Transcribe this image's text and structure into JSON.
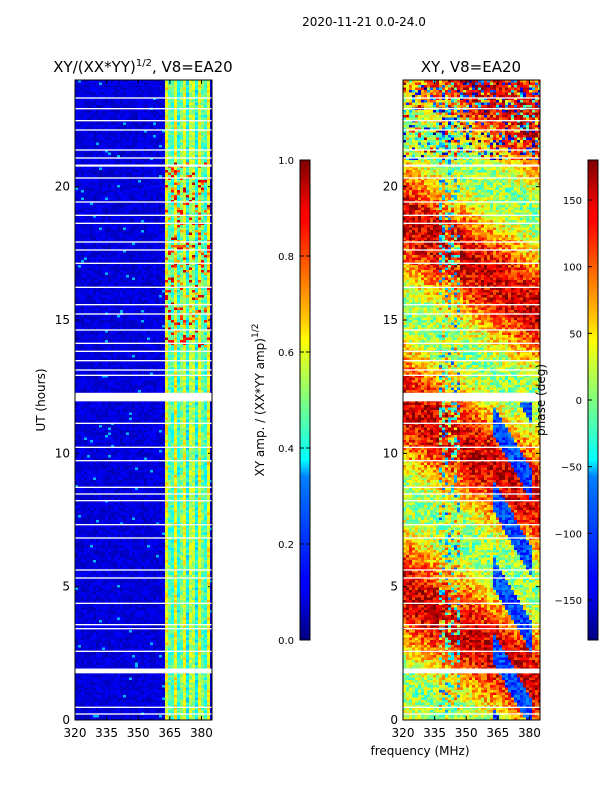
{
  "figure_title": "2020-11-21 0.0-24.0",
  "chart_data": [
    {
      "type": "heatmap",
      "title": "XY/(XX*YY)^1/2, V8=EA20",
      "title_main": "XY/(XX*YY)",
      "title_exp": "1/2",
      "title_tail": ", V8=EA20",
      "xlabel": "",
      "ylabel": "UT (hours)",
      "xlim": [
        320,
        385
      ],
      "ylim": [
        0,
        24
      ],
      "x_ticks": [
        320,
        335,
        350,
        365,
        380
      ],
      "y_ticks": [
        0,
        5,
        10,
        15,
        20
      ],
      "colorbar": {
        "label": "XY amp. / (XX*YY amp)^1/2",
        "label_main": "XY amp. / (XX*YY amp)",
        "label_exp": "1/2",
        "range": [
          0.0,
          1.0
        ],
        "ticks": [
          "0.0",
          "0.2",
          "0.4",
          "0.6",
          "0.8",
          "1.0"
        ],
        "colormap": "jet"
      }
    },
    {
      "type": "heatmap",
      "title": "XY, V8=EA20",
      "xlabel": "frequency (MHz)",
      "ylabel": "",
      "xlim": [
        320,
        385
      ],
      "ylim": [
        0,
        24
      ],
      "x_ticks": [
        320,
        335,
        350,
        365,
        380
      ],
      "y_ticks": [
        0,
        5,
        10,
        15,
        20
      ],
      "colorbar": {
        "label": "phase (deg)",
        "range": [
          -180,
          180
        ],
        "ticks": [
          "−150",
          "−100",
          "−50",
          "0",
          "50",
          "100",
          "150"
        ],
        "tick_values": [
          -150,
          -100,
          -50,
          0,
          50,
          100,
          150
        ],
        "colormap": "jet"
      }
    }
  ],
  "colors": {
    "jet_dark": "#00007f",
    "jet_blue": "#0000ff",
    "jet_cyan": "#00ffff",
    "jet_yellow": "#ffff00",
    "jet_red": "#ff0000",
    "jet_darkred": "#7f0000",
    "gap": "#ffffff"
  }
}
